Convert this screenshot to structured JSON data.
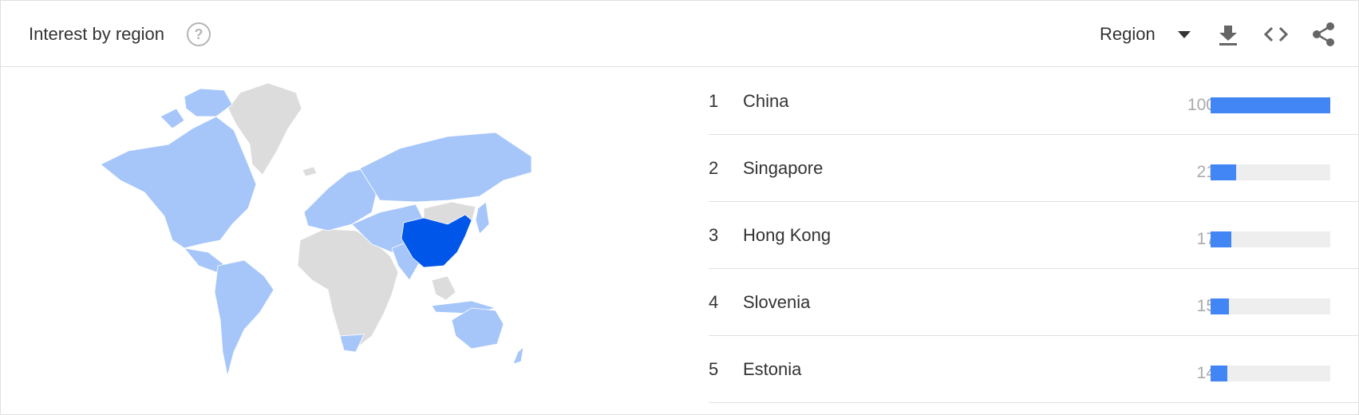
{
  "header": {
    "title": "Interest by region",
    "help_icon": "help-circle-icon",
    "region_select": {
      "selected": "Region"
    },
    "tools": [
      "download-icon",
      "embed-code-icon",
      "share-icon"
    ]
  },
  "map": {
    "colors": {
      "top": "#0056e9",
      "some_interest": "#a6c6fa",
      "no_data": "#dcdcdc"
    }
  },
  "regions": [
    {
      "rank": "1",
      "name": "China",
      "value": 100
    },
    {
      "rank": "2",
      "name": "Singapore",
      "value": 21
    },
    {
      "rank": "3",
      "name": "Hong Kong",
      "value": 17
    },
    {
      "rank": "4",
      "name": "Slovenia",
      "value": 15
    },
    {
      "rank": "5",
      "name": "Estonia",
      "value": 14
    }
  ],
  "colors": {
    "bar": "#4285f4",
    "bar_track": "#eeeeee"
  }
}
